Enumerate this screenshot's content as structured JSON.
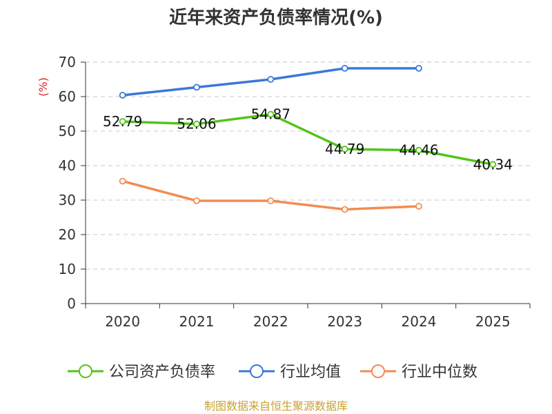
{
  "chart_data": {
    "type": "line",
    "title": "近年来资产负债率情况(%)",
    "ylabel": "(%)",
    "xlabel": "",
    "categories": [
      "2020",
      "2021",
      "2022",
      "2023",
      "2024",
      "2025"
    ],
    "ylim": [
      0,
      70
    ],
    "yticks": [
      0,
      10,
      20,
      30,
      40,
      50,
      60,
      70
    ],
    "grid": true,
    "legend_position": "bottom",
    "series": [
      {
        "name": "公司资产负债率",
        "color": "#52c41a",
        "values": [
          52.79,
          52.06,
          54.87,
          44.79,
          44.46,
          40.34
        ],
        "labels": [
          "52.79",
          "52.06",
          "54.87",
          "44.79",
          "44.46",
          "40.34"
        ]
      },
      {
        "name": "行业均值",
        "color": "#3b78d8",
        "values": [
          60.4,
          62.7,
          65.0,
          68.2,
          68.2,
          null
        ]
      },
      {
        "name": "行业中位数",
        "color": "#f28c52",
        "values": [
          35.5,
          29.8,
          29.8,
          27.3,
          28.2,
          null
        ]
      }
    ],
    "source": "制图数据来自恒生聚源数据库"
  }
}
